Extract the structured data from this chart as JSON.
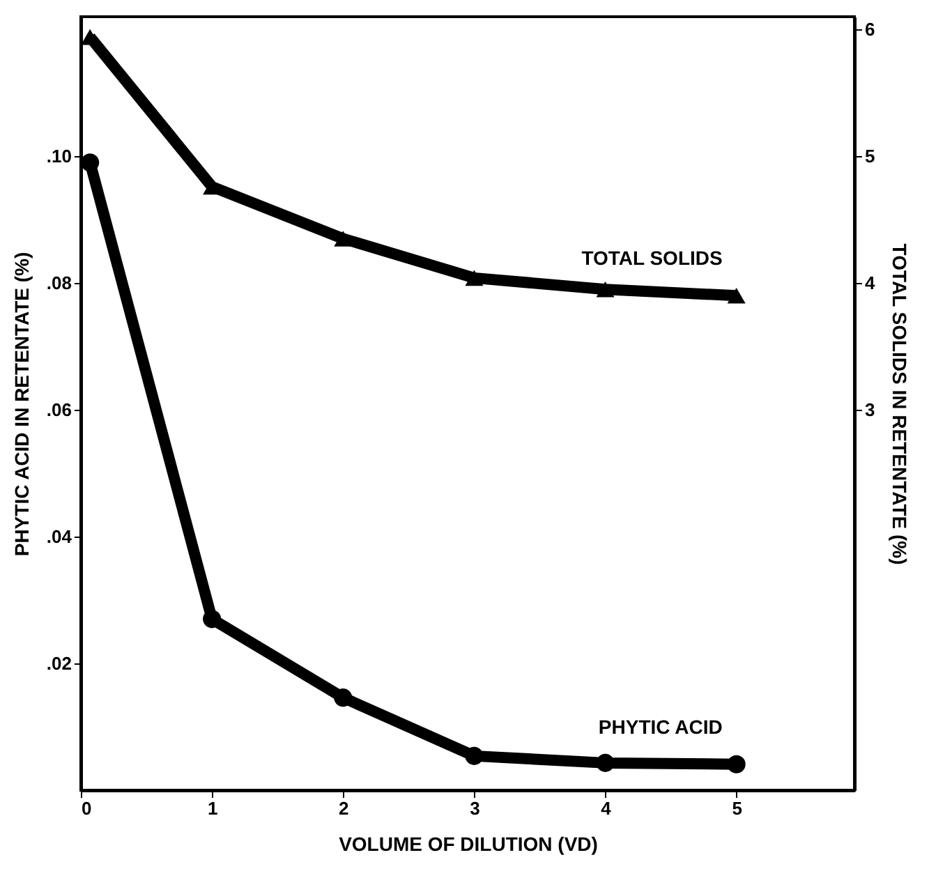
{
  "chart_data": {
    "type": "line",
    "xlabel": "VOLUME OF DILUTION (VD)",
    "ylabel": "PHYTIC ACID IN RETENTATE (%)",
    "y2label": "TOTAL SOLIDS IN RETENTATE (%)",
    "x": [
      0.07,
      1,
      2,
      3,
      4,
      5
    ],
    "series": [
      {
        "name": "TOTAL SOLIDS",
        "color": "#000000",
        "axis": "y2",
        "marker": "triangle",
        "values": [
          5.94,
          4.76,
          4.35,
          4.04,
          3.95,
          3.9
        ]
      },
      {
        "name": "PHYTIC ACID",
        "color": "#000000",
        "marker": "circle",
        "values": [
          0.099,
          0.027,
          0.0146,
          0.0054,
          0.0043,
          0.0041
        ]
      }
    ],
    "xlim": [
      0,
      5.9
    ],
    "xticks": [
      0,
      1,
      2,
      3,
      4,
      5
    ],
    "ylim": [
      0,
      0.122
    ],
    "yticks": [
      {
        "value": 0.02,
        "label": ".02"
      },
      {
        "value": 0.04,
        "label": ".04"
      },
      {
        "value": 0.06,
        "label": ".06"
      },
      {
        "value": 0.08,
        "label": ".08"
      },
      {
        "value": 0.1,
        "label": ".10"
      }
    ],
    "y2lim": [
      0,
      6.1
    ],
    "y2ticks": [
      3,
      4,
      5,
      6
    ],
    "line_style": "solid"
  }
}
